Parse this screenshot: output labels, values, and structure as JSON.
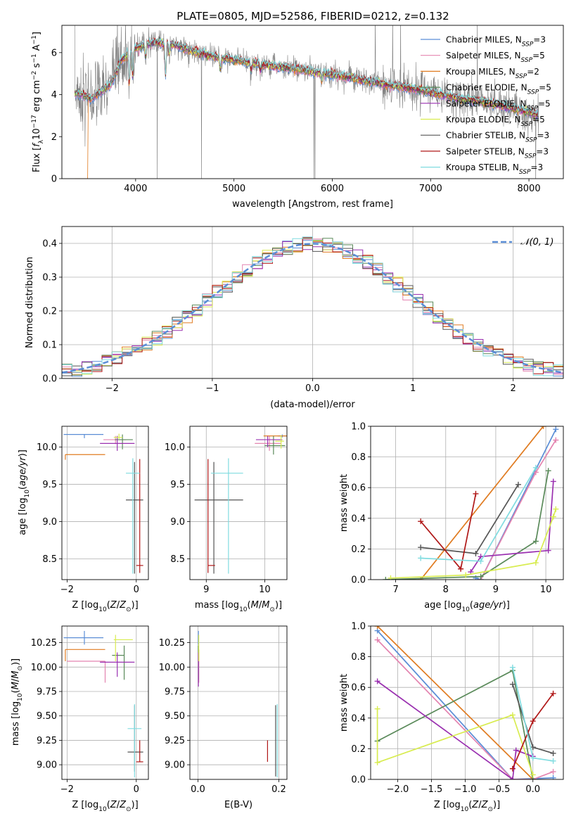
{
  "figure": {
    "title": "PLATE=0805, MJD=52586, FIBERID=0212, z=0.132"
  },
  "colors": {
    "Chabrier MILES": "#5b8ed6",
    "Salpeter MILES": "#e484b0",
    "Kroupa MILES": "#e07b20",
    "Chabrier ELODIE": "#5a8a5a",
    "Salpeter ELODIE": "#9a30b0",
    "Kroupa ELODIE": "#d8ec50",
    "Chabrier STELIB": "#555555",
    "Salpeter STELIB": "#b01818",
    "Kroupa STELIB": "#80dce0",
    "data": "#808080",
    "normal": "#5b8ed6"
  },
  "chart_data": [
    {
      "id": "spectrum",
      "type": "line",
      "xlabel": "wavelength [Angstrom, rest frame]",
      "ylabel": "Flux [f_λ10^-17 erg cm^-2 s^-1 A^-1]",
      "xlim": [
        3250,
        8350
      ],
      "ylim": [
        0,
        7.3
      ],
      "xticks": [
        4000,
        5000,
        6000,
        7000,
        8000
      ],
      "yticks": [
        0,
        2,
        4,
        6
      ],
      "grid": false,
      "legend_position": "top-right",
      "legend": [
        {
          "label": "Chabrier MILES, N_SSP=3",
          "model": "Chabrier MILES"
        },
        {
          "label": "Salpeter MILES, N_SSP=5",
          "model": "Salpeter MILES"
        },
        {
          "label": "Kroupa MILES, N_SSP=2",
          "model": "Kroupa MILES"
        },
        {
          "label": "Chabrier ELODIE, N_SSP=5",
          "model": "Chabrier ELODIE"
        },
        {
          "label": "Salpeter ELODIE, N_SSP=5",
          "model": "Salpeter ELODIE"
        },
        {
          "label": "Kroupa ELODIE, N_SSP=5",
          "model": "Kroupa ELODIE"
        },
        {
          "label": "Chabrier STELIB, N_SSP=3",
          "model": "Chabrier STELIB"
        },
        {
          "label": "Salpeter STELIB, N_SSP=3",
          "model": "Salpeter STELIB"
        },
        {
          "label": "Kroupa STELIB, N_SSP=3",
          "model": "Kroupa STELIB"
        }
      ],
      "continuum": [
        [
          3380,
          4.1
        ],
        [
          3450,
          4.0
        ],
        [
          3550,
          3.8
        ],
        [
          3650,
          4.15
        ],
        [
          3750,
          4.5
        ],
        [
          3850,
          5.6
        ],
        [
          3950,
          6.1
        ],
        [
          4050,
          6.3
        ],
        [
          4200,
          6.5
        ],
        [
          4400,
          6.35
        ],
        [
          4600,
          6.05
        ],
        [
          4800,
          5.8
        ],
        [
          5000,
          5.65
        ],
        [
          5200,
          5.5
        ],
        [
          5400,
          5.35
        ],
        [
          5600,
          5.25
        ],
        [
          5800,
          5.1
        ],
        [
          6000,
          4.95
        ],
        [
          6200,
          4.8
        ],
        [
          6400,
          4.6
        ],
        [
          6600,
          4.45
        ],
        [
          6800,
          4.3
        ],
        [
          7000,
          4.1
        ],
        [
          7200,
          3.9
        ],
        [
          7400,
          3.75
        ],
        [
          7600,
          3.6
        ],
        [
          7800,
          3.4
        ],
        [
          8000,
          3.15
        ],
        [
          8100,
          3.0
        ]
      ],
      "absorption_features": [
        {
          "x": 3934,
          "depth": 1.6
        },
        {
          "x": 3969,
          "depth": 1.3
        },
        {
          "x": 4102,
          "depth": 0.6
        },
        {
          "x": 4304,
          "depth": 1.6
        },
        {
          "x": 4340,
          "depth": 0.5
        },
        {
          "x": 4861,
          "depth": 0.5
        },
        {
          "x": 5175,
          "depth": 0.4
        },
        {
          "x": 5270,
          "depth": 0.3
        },
        {
          "x": 5893,
          "depth": 0.4
        }
      ]
    },
    {
      "id": "residuals",
      "type": "bar",
      "xlabel": "(data-model)/error",
      "ylabel": "Normed distribution",
      "xlim": [
        -2.5,
        2.5
      ],
      "ylim": [
        0,
        0.45
      ],
      "xticks": [
        -2,
        -1,
        0,
        1,
        2
      ],
      "yticks": [
        0.0,
        0.1,
        0.2,
        0.3,
        0.4
      ],
      "grid": true,
      "legend_position": "top-right",
      "legend": [
        {
          "label": "𝒩(0, 1)"
        }
      ],
      "bin_width": 0.1,
      "bin_start": -2.5,
      "amplitude": 0.399
    },
    {
      "id": "age-vs-Z",
      "type": "scatter",
      "xlabel": "Z [log10(Z/Z⊙)]",
      "ylabel": "age [log10(age/yr)]",
      "xlim": [
        -2.15,
        0.35
      ],
      "ylim": [
        8.22,
        10.28
      ],
      "xticks": [
        -2,
        0
      ],
      "yticks": [
        8.5,
        9.0,
        9.5,
        10.0
      ],
      "grid": true,
      "points": [
        {
          "model": "Chabrier MILES",
          "x": -1.5,
          "y": 10.17,
          "xerr": [
            0.6,
            0.55
          ],
          "yerr": [
            0.05,
            0.0
          ]
        },
        {
          "model": "Salpeter MILES",
          "x": -0.6,
          "y": 10.1,
          "xerr": [
            0.35,
            0.3
          ],
          "yerr": [
            0.06,
            0.05
          ]
        },
        {
          "model": "Kroupa MILES",
          "x": -2.05,
          "y": 9.9,
          "xerr": [
            0.0,
            1.15
          ],
          "yerr": [
            0.07,
            0.0
          ]
        },
        {
          "model": "Chabrier ELODIE",
          "x": -0.4,
          "y": 10.1,
          "xerr": [
            0.22,
            0.3
          ],
          "yerr": [
            0.13,
            0.07
          ]
        },
        {
          "model": "Salpeter ELODIE",
          "x": -0.55,
          "y": 10.05,
          "xerr": [
            0.5,
            0.5
          ],
          "yerr": [
            0.1,
            0.1
          ]
        },
        {
          "model": "Kroupa ELODIE",
          "x": -0.5,
          "y": 10.13,
          "xerr": [
            0.15,
            0.1
          ],
          "yerr": [
            0.02,
            0.05
          ]
        },
        {
          "model": "Chabrier STELIB",
          "x": -0.05,
          "y": 9.29,
          "xerr": [
            0.25,
            0.25
          ],
          "yerr": [
            0.99,
            0.51
          ]
        },
        {
          "model": "Salpeter STELIB",
          "x": 0.1,
          "y": 8.41,
          "xerr": [
            0.1,
            0.1
          ],
          "yerr": [
            0.1,
            1.43
          ]
        },
        {
          "model": "Kroupa STELIB",
          "x": -0.1,
          "y": 9.65,
          "xerr": [
            0.2,
            0.2
          ],
          "yerr": [
            1.35,
            0.2
          ]
        }
      ]
    },
    {
      "id": "age-vs-mass",
      "type": "scatter",
      "xlabel": "mass [log10(M/M⊙)]",
      "ylabel": "",
      "xlim": [
        8.72,
        10.38
      ],
      "ylim": [
        8.22,
        10.28
      ],
      "xticks": [
        9,
        10
      ],
      "yticks": [
        8.5,
        9.0,
        9.5,
        10.0
      ],
      "grid": true,
      "points": [
        {
          "model": "Chabrier MILES",
          "x": 10.3,
          "y": 10.15,
          "xerr": [
            0.08,
            0.08
          ],
          "yerr": [
            0.02,
            0.02
          ]
        },
        {
          "model": "Salpeter MILES",
          "x": 10.08,
          "y": 10.05,
          "xerr": [
            0.25,
            0.2
          ],
          "yerr": [
            0.1,
            0.1
          ]
        },
        {
          "model": "Kroupa MILES",
          "x": 10.18,
          "y": 10.15,
          "xerr": [
            0.2,
            0.2
          ],
          "yerr": [
            0.0,
            0.0
          ]
        },
        {
          "model": "Chabrier ELODIE",
          "x": 10.15,
          "y": 10.02,
          "xerr": [
            0.15,
            0.2
          ],
          "yerr": [
            0.12,
            0.13
          ]
        },
        {
          "model": "Salpeter ELODIE",
          "x": 10.05,
          "y": 10.1,
          "xerr": [
            0.2,
            0.25
          ],
          "yerr": [
            0.1,
            0.05
          ]
        },
        {
          "model": "Kroupa ELODIE",
          "x": 10.28,
          "y": 10.08,
          "xerr": [
            0.1,
            0.05
          ],
          "yerr": [
            0.1,
            0.08
          ]
        },
        {
          "model": "Chabrier STELIB",
          "x": 9.13,
          "y": 9.29,
          "xerr": [
            0.33,
            0.5
          ],
          "yerr": [
            0.99,
            0.51
          ]
        },
        {
          "model": "Salpeter STELIB",
          "x": 9.03,
          "y": 8.41,
          "xerr": [
            0.0,
            0.12
          ],
          "yerr": [
            0.1,
            1.43
          ]
        },
        {
          "model": "Kroupa STELIB",
          "x": 9.38,
          "y": 9.65,
          "xerr": [
            0.3,
            0.25
          ],
          "yerr": [
            1.35,
            0.2
          ]
        }
      ]
    },
    {
      "id": "massweight-vs-age",
      "type": "line",
      "xlabel": "age [log10(age/yr)]",
      "ylabel": "mass weight",
      "xlim": [
        6.5,
        10.35
      ],
      "ylim": [
        0.0,
        1.0
      ],
      "xticks": [
        7,
        8,
        9,
        10
      ],
      "yticks": [
        0.0,
        0.2,
        0.4,
        0.6,
        0.8,
        1.0
      ],
      "grid": true,
      "series": [
        {
          "model": "Chabrier MILES",
          "x": [
            8.6,
            8.7,
            10.2
          ],
          "y": [
            0.01,
            0.0,
            0.98
          ]
        },
        {
          "model": "Salpeter MILES",
          "x": [
            8.7,
            9.8,
            10.2
          ],
          "y": [
            0.0,
            0.7,
            0.91
          ]
        },
        {
          "model": "Kroupa MILES",
          "x": [
            7.5,
            9.95
          ],
          "y": [
            0.0,
            1.0
          ]
        },
        {
          "model": "Chabrier ELODIE",
          "x": [
            6.8,
            8.7,
            9.8,
            10.05
          ],
          "y": [
            0.0,
            0.02,
            0.25,
            0.71
          ]
        },
        {
          "model": "Salpeter ELODIE",
          "x": [
            8.5,
            8.7,
            10.05,
            10.15
          ],
          "y": [
            0.05,
            0.15,
            0.19,
            0.64
          ]
        },
        {
          "model": "Kroupa ELODIE",
          "x": [
            6.9,
            8.4,
            9.8,
            10.15,
            10.2
          ],
          "y": [
            0.01,
            0.03,
            0.11,
            0.41,
            0.46
          ]
        },
        {
          "model": "Chabrier STELIB",
          "x": [
            7.5,
            8.6,
            9.45
          ],
          "y": [
            0.21,
            0.17,
            0.62
          ]
        },
        {
          "model": "Salpeter STELIB",
          "x": [
            7.5,
            8.3,
            8.6
          ],
          "y": [
            0.38,
            0.07,
            0.56
          ]
        },
        {
          "model": "Kroupa STELIB",
          "x": [
            7.5,
            8.7,
            9.8
          ],
          "y": [
            0.14,
            0.12,
            0.73
          ]
        }
      ]
    },
    {
      "id": "mass-vs-Z",
      "type": "scatter",
      "xlabel": "Z [log10(Z/Z⊙)]",
      "ylabel": "mass [log10(M/M⊙)]",
      "xlim": [
        -2.15,
        0.35
      ],
      "ylim": [
        8.85,
        10.42
      ],
      "xticks": [
        -2,
        0
      ],
      "yticks": [
        9.0,
        9.25,
        9.5,
        9.75,
        10.0,
        10.25
      ],
      "grid": true,
      "points": [
        {
          "model": "Chabrier MILES",
          "x": -1.5,
          "y": 10.3,
          "xerr": [
            0.6,
            0.55
          ],
          "yerr": [
            0.07,
            0.07
          ]
        },
        {
          "model": "Salpeter MILES",
          "x": -0.9,
          "y": 10.06,
          "xerr": [
            1.1,
            0.0
          ],
          "yerr": [
            0.22,
            0.0
          ]
        },
        {
          "model": "Kroupa MILES",
          "x": -2.05,
          "y": 10.18,
          "xerr": [
            0.0,
            1.15
          ],
          "yerr": [
            0.12,
            0.0
          ]
        },
        {
          "model": "Chabrier ELODIE",
          "x": -0.35,
          "y": 10.12,
          "xerr": [
            0.35,
            0.0
          ],
          "yerr": [
            0.25,
            0.1
          ]
        },
        {
          "model": "Salpeter ELODIE",
          "x": -0.55,
          "y": 10.05,
          "xerr": [
            0.5,
            0.5
          ],
          "yerr": [
            0.15,
            0.1
          ]
        },
        {
          "model": "Kroupa ELODIE",
          "x": -0.6,
          "y": 10.28,
          "xerr": [
            0.05,
            0.5
          ],
          "yerr": [
            0.22,
            0.05
          ]
        },
        {
          "model": "Chabrier STELIB",
          "x": -0.05,
          "y": 9.13,
          "xerr": [
            0.2,
            0.25
          ],
          "yerr": [
            0.2,
            0.48
          ]
        },
        {
          "model": "Salpeter STELIB",
          "x": 0.1,
          "y": 9.03,
          "xerr": [
            0.1,
            0.1
          ],
          "yerr": [
            0.0,
            0.22
          ]
        },
        {
          "model": "Kroupa STELIB",
          "x": -0.05,
          "y": 9.37,
          "xerr": [
            0.2,
            0.2
          ],
          "yerr": [
            0.5,
            0.25
          ]
        }
      ]
    },
    {
      "id": "mass-vs-ebv",
      "type": "scatter",
      "xlabel": "E(B-V)",
      "ylabel": "",
      "xlim": [
        -0.02,
        0.22
      ],
      "ylim": [
        8.85,
        10.42
      ],
      "xticks": [
        0.0,
        0.2
      ],
      "yticks": [
        9.0,
        9.25,
        9.5,
        9.75,
        10.0,
        10.25
      ],
      "grid": true,
      "points": [
        {
          "model": "Chabrier MILES",
          "x": 0.001,
          "y": 10.3,
          "xerr": [
            0,
            0
          ],
          "yerr": [
            0.07,
            0.07
          ]
        },
        {
          "model": "Salpeter MILES",
          "x": 0.002,
          "y": 10.06,
          "xerr": [
            0,
            0
          ],
          "yerr": [
            0.22,
            0.0
          ]
        },
        {
          "model": "Kroupa MILES",
          "x": 0.002,
          "y": 10.18,
          "xerr": [
            0,
            0
          ],
          "yerr": [
            0.12,
            0.0
          ]
        },
        {
          "model": "Chabrier ELODIE",
          "x": 0.001,
          "y": 10.12,
          "xerr": [
            0,
            0
          ],
          "yerr": [
            0.25,
            0.1
          ]
        },
        {
          "model": "Salpeter ELODIE",
          "x": 0.001,
          "y": 10.05,
          "xerr": [
            0,
            0
          ],
          "yerr": [
            0.25,
            0.1
          ]
        },
        {
          "model": "Kroupa ELODIE",
          "x": 0.002,
          "y": 10.28,
          "xerr": [
            0,
            0
          ],
          "yerr": [
            0.22,
            0.05
          ]
        },
        {
          "model": "Chabrier STELIB",
          "x": 0.192,
          "y": 9.13,
          "xerr": [
            0,
            0
          ],
          "yerr": [
            0.25,
            0.48
          ]
        },
        {
          "model": "Salpeter STELIB",
          "x": 0.172,
          "y": 9.03,
          "xerr": [
            0,
            0
          ],
          "yerr": [
            0.0,
            0.22
          ]
        },
        {
          "model": "Kroupa STELIB",
          "x": 0.196,
          "y": 9.37,
          "xerr": [
            0,
            0
          ],
          "yerr": [
            0.5,
            0.25
          ]
        }
      ]
    },
    {
      "id": "massweight-vs-Z",
      "type": "line",
      "xlabel": "Z [log10(Z/Z⊙)]",
      "ylabel": "mass weight",
      "xlim": [
        -2.4,
        0.45
      ],
      "ylim": [
        0.0,
        1.0
      ],
      "xticks": [
        -2.0,
        -1.5,
        -1.0,
        -0.5,
        0.0
      ],
      "yticks": [
        0.0,
        0.2,
        0.4,
        0.6,
        0.8,
        1.0
      ],
      "grid": true,
      "series": [
        {
          "model": "Chabrier MILES",
          "x": [
            -2.3,
            -0.3,
            0.3
          ],
          "y": [
            0.97,
            0.0,
            0.01
          ]
        },
        {
          "model": "Salpeter MILES",
          "x": [
            -2.3,
            -0.3,
            0.0,
            0.3
          ],
          "y": [
            0.91,
            0.0,
            0.0,
            0.05
          ]
        },
        {
          "model": "Kroupa MILES",
          "x": [
            -2.3,
            0.0
          ],
          "y": [
            1.0,
            0.0
          ]
        },
        {
          "model": "Chabrier ELODIE",
          "x": [
            -2.3,
            -0.3,
            0.0
          ],
          "y": [
            0.25,
            0.71,
            0.0
          ]
        },
        {
          "model": "Salpeter ELODIE",
          "x": [
            -2.3,
            -0.3,
            -0.25,
            0.0
          ],
          "y": [
            0.64,
            0.0,
            0.19,
            0.15
          ]
        },
        {
          "model": "Kroupa ELODIE",
          "x": [
            -2.3,
            -2.3,
            -0.3,
            0.0
          ],
          "y": [
            0.46,
            0.11,
            0.42,
            0.03
          ]
        },
        {
          "model": "Chabrier STELIB",
          "x": [
            -0.3,
            0.0,
            0.3
          ],
          "y": [
            0.62,
            0.21,
            0.17
          ]
        },
        {
          "model": "Salpeter STELIB",
          "x": [
            -0.3,
            0.0,
            0.3
          ],
          "y": [
            0.07,
            0.38,
            0.56
          ]
        },
        {
          "model": "Kroupa STELIB",
          "x": [
            -0.3,
            0.0,
            0.3
          ],
          "y": [
            0.73,
            0.14,
            0.12
          ]
        }
      ]
    }
  ]
}
